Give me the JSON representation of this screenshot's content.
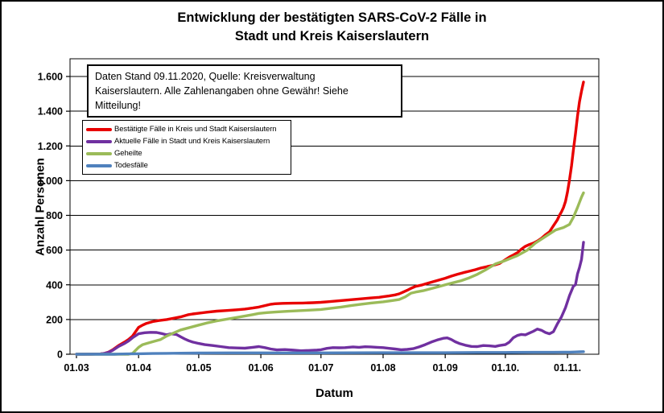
{
  "window": {
    "background": "#ffffff",
    "frame_border_color": "#000000"
  },
  "title": {
    "line1": "Entwicklung der bestätigten SARS-CoV-2 Fälle in",
    "line2": "Stadt und Kreis Kaiserslautern"
  },
  "annotation": {
    "line1": "Daten Stand 09.11.2020, Quelle: Kreisverwaltung",
    "line2": "Kaiserslautern. Alle Zahlenangaben ohne Gewähr! Siehe Mitteilung!"
  },
  "axes": {
    "x_label": "Datum",
    "y_label": "Anzahl Personen"
  },
  "chart_data": {
    "type": "line",
    "title": "Entwicklung der bestätigten SARS-CoV-2 Fälle in Stadt und Kreis Kaiserslautern",
    "xlabel": "Datum",
    "ylabel": "Anzahl Personen",
    "grid": "horizontal",
    "legend_position": "upper-left-inside",
    "ylim": [
      0,
      1700
    ],
    "x_unit": "days since 01.03.2020, data through 09.11.2020",
    "x_range_days": 253,
    "y_ticks": [
      {
        "value": 0,
        "label": "0"
      },
      {
        "value": 200,
        "label": "200"
      },
      {
        "value": 400,
        "label": "400"
      },
      {
        "value": 600,
        "label": "600"
      },
      {
        "value": 800,
        "label": "800"
      },
      {
        "value": 1000,
        "label": "1.000"
      },
      {
        "value": 1200,
        "label": "1.200"
      },
      {
        "value": 1400,
        "label": "1.400"
      },
      {
        "value": 1600,
        "label": "1.600"
      }
    ],
    "x_ticks": [
      {
        "day": 0,
        "label": "01.03"
      },
      {
        "day": 31,
        "label": "01.04"
      },
      {
        "day": 61,
        "label": "01.05"
      },
      {
        "day": 92,
        "label": "01.06"
      },
      {
        "day": 122,
        "label": "01.07"
      },
      {
        "day": 153,
        "label": "01.08"
      },
      {
        "day": 184,
        "label": "01.09"
      },
      {
        "day": 214,
        "label": "01.10."
      },
      {
        "day": 245,
        "label": "01.11."
      }
    ],
    "series": [
      {
        "id": "bestaetigte",
        "label": "Bestätigte Fälle in Kreis und Stadt Kaiserslautern",
        "color": "#e80000",
        "points": [
          [
            0,
            0
          ],
          [
            7,
            0
          ],
          [
            12,
            2
          ],
          [
            14,
            5
          ],
          [
            16,
            12
          ],
          [
            18,
            25
          ],
          [
            21,
            50
          ],
          [
            24,
            70
          ],
          [
            26,
            85
          ],
          [
            28,
            105
          ],
          [
            31,
            155
          ],
          [
            33,
            168
          ],
          [
            35,
            178
          ],
          [
            38,
            188
          ],
          [
            41,
            194
          ],
          [
            45,
            200
          ],
          [
            49,
            208
          ],
          [
            52,
            215
          ],
          [
            56,
            228
          ],
          [
            58,
            232
          ],
          [
            61,
            236
          ],
          [
            65,
            242
          ],
          [
            70,
            248
          ],
          [
            75,
            252
          ],
          [
            80,
            256
          ],
          [
            84,
            260
          ],
          [
            88,
            266
          ],
          [
            91,
            272
          ],
          [
            94,
            280
          ],
          [
            97,
            288
          ],
          [
            99,
            291
          ],
          [
            103,
            293
          ],
          [
            108,
            294
          ],
          [
            113,
            295
          ],
          [
            118,
            297
          ],
          [
            122,
            299
          ],
          [
            126,
            303
          ],
          [
            130,
            307
          ],
          [
            134,
            311
          ],
          [
            138,
            315
          ],
          [
            142,
            319
          ],
          [
            147,
            324
          ],
          [
            151,
            328
          ],
          [
            153,
            331
          ],
          [
            156,
            336
          ],
          [
            159,
            342
          ],
          [
            161,
            348
          ],
          [
            163,
            358
          ],
          [
            165,
            368
          ],
          [
            167,
            380
          ],
          [
            169,
            390
          ],
          [
            172,
            398
          ],
          [
            175,
            408
          ],
          [
            178,
            418
          ],
          [
            181,
            428
          ],
          [
            184,
            438
          ],
          [
            187,
            450
          ],
          [
            190,
            460
          ],
          [
            193,
            470
          ],
          [
            196,
            478
          ],
          [
            199,
            487
          ],
          [
            202,
            497
          ],
          [
            205,
            505
          ],
          [
            208,
            512
          ],
          [
            211,
            522
          ],
          [
            214,
            545
          ],
          [
            216,
            560
          ],
          [
            218,
            572
          ],
          [
            220,
            585
          ],
          [
            222,
            605
          ],
          [
            224,
            622
          ],
          [
            226,
            632
          ],
          [
            228,
            640
          ],
          [
            230,
            652
          ],
          [
            232,
            668
          ],
          [
            234,
            688
          ],
          [
            236,
            705
          ],
          [
            238,
            740
          ],
          [
            240,
            775
          ],
          [
            241,
            800
          ],
          [
            242,
            820
          ],
          [
            243,
            845
          ],
          [
            244,
            880
          ],
          [
            245,
            935
          ],
          [
            246,
            1005
          ],
          [
            247,
            1085
          ],
          [
            248,
            1180
          ],
          [
            249,
            1270
          ],
          [
            250,
            1370
          ],
          [
            251,
            1455
          ],
          [
            252,
            1515
          ],
          [
            253,
            1568
          ]
        ]
      },
      {
        "id": "aktuelle",
        "label": "Aktuelle Fälle in Stadt und Kreis Kaiserslautern",
        "color": "#7030a0",
        "points": [
          [
            0,
            0
          ],
          [
            12,
            2
          ],
          [
            14,
            5
          ],
          [
            16,
            11
          ],
          [
            18,
            22
          ],
          [
            21,
            45
          ],
          [
            24,
            62
          ],
          [
            26,
            76
          ],
          [
            28,
            95
          ],
          [
            31,
            118
          ],
          [
            34,
            124
          ],
          [
            37,
            126
          ],
          [
            40,
            125
          ],
          [
            43,
            118
          ],
          [
            45,
            112
          ],
          [
            47,
            118
          ],
          [
            50,
            113
          ],
          [
            52,
            100
          ],
          [
            54,
            88
          ],
          [
            56,
            78
          ],
          [
            58,
            70
          ],
          [
            61,
            62
          ],
          [
            64,
            55
          ],
          [
            68,
            50
          ],
          [
            72,
            44
          ],
          [
            76,
            38
          ],
          [
            80,
            36
          ],
          [
            84,
            35
          ],
          [
            88,
            40
          ],
          [
            91,
            44
          ],
          [
            94,
            38
          ],
          [
            97,
            30
          ],
          [
            100,
            25
          ],
          [
            104,
            27
          ],
          [
            108,
            24
          ],
          [
            112,
            20
          ],
          [
            116,
            22
          ],
          [
            120,
            24
          ],
          [
            122,
            26
          ],
          [
            125,
            34
          ],
          [
            128,
            38
          ],
          [
            131,
            37
          ],
          [
            134,
            38
          ],
          [
            138,
            42
          ],
          [
            141,
            40
          ],
          [
            144,
            43
          ],
          [
            147,
            42
          ],
          [
            150,
            40
          ],
          [
            153,
            38
          ],
          [
            156,
            34
          ],
          [
            159,
            30
          ],
          [
            162,
            26
          ],
          [
            165,
            28
          ],
          [
            168,
            32
          ],
          [
            171,
            42
          ],
          [
            174,
            55
          ],
          [
            177,
            70
          ],
          [
            180,
            82
          ],
          [
            183,
            92
          ],
          [
            185,
            94
          ],
          [
            187,
            85
          ],
          [
            189,
            72
          ],
          [
            191,
            62
          ],
          [
            194,
            52
          ],
          [
            197,
            45
          ],
          [
            200,
            44
          ],
          [
            203,
            50
          ],
          [
            206,
            48
          ],
          [
            209,
            45
          ],
          [
            211,
            50
          ],
          [
            214,
            55
          ],
          [
            216,
            70
          ],
          [
            218,
            95
          ],
          [
            220,
            108
          ],
          [
            222,
            114
          ],
          [
            224,
            112
          ],
          [
            226,
            122
          ],
          [
            228,
            132
          ],
          [
            230,
            145
          ],
          [
            232,
            138
          ],
          [
            234,
            125
          ],
          [
            236,
            118
          ],
          [
            238,
            130
          ],
          [
            240,
            176
          ],
          [
            242,
            215
          ],
          [
            244,
            268
          ],
          [
            246,
            338
          ],
          [
            248,
            393
          ],
          [
            249,
            400
          ],
          [
            250,
            462
          ],
          [
            251,
            500
          ],
          [
            252,
            546
          ],
          [
            253,
            645
          ]
        ]
      },
      {
        "id": "geheilte",
        "label": "Geheilte",
        "color": "#9bbb59",
        "points": [
          [
            0,
            0
          ],
          [
            26,
            0
          ],
          [
            28,
            5
          ],
          [
            31,
            40
          ],
          [
            33,
            55
          ],
          [
            35,
            62
          ],
          [
            38,
            72
          ],
          [
            42,
            85
          ],
          [
            45,
            105
          ],
          [
            49,
            125
          ],
          [
            52,
            140
          ],
          [
            56,
            152
          ],
          [
            61,
            168
          ],
          [
            65,
            180
          ],
          [
            70,
            192
          ],
          [
            75,
            202
          ],
          [
            80,
            212
          ],
          [
            84,
            220
          ],
          [
            88,
            228
          ],
          [
            91,
            235
          ],
          [
            95,
            240
          ],
          [
            100,
            244
          ],
          [
            105,
            247
          ],
          [
            110,
            250
          ],
          [
            115,
            253
          ],
          [
            122,
            258
          ],
          [
            127,
            265
          ],
          [
            132,
            272
          ],
          [
            137,
            280
          ],
          [
            142,
            288
          ],
          [
            147,
            295
          ],
          [
            153,
            302
          ],
          [
            157,
            308
          ],
          [
            161,
            315
          ],
          [
            164,
            330
          ],
          [
            167,
            352
          ],
          [
            170,
            360
          ],
          [
            173,
            366
          ],
          [
            177,
            378
          ],
          [
            181,
            390
          ],
          [
            184,
            400
          ],
          [
            188,
            412
          ],
          [
            192,
            424
          ],
          [
            196,
            440
          ],
          [
            200,
            460
          ],
          [
            204,
            485
          ],
          [
            209,
            520
          ],
          [
            214,
            540
          ],
          [
            220,
            568
          ],
          [
            225,
            600
          ],
          [
            229,
            640
          ],
          [
            234,
            678
          ],
          [
            239,
            715
          ],
          [
            243,
            730
          ],
          [
            246,
            748
          ],
          [
            248,
            790
          ],
          [
            250,
            845
          ],
          [
            251,
            875
          ],
          [
            252,
            905
          ],
          [
            253,
            930
          ]
        ]
      },
      {
        "id": "todesfaelle",
        "label": "Todesfälle",
        "color": "#4f81bd",
        "points": [
          [
            0,
            0
          ],
          [
            19,
            0
          ],
          [
            21,
            1
          ],
          [
            25,
            2
          ],
          [
            31,
            3
          ],
          [
            38,
            4
          ],
          [
            45,
            5
          ],
          [
            52,
            6
          ],
          [
            61,
            7
          ],
          [
            76,
            8
          ],
          [
            92,
            8
          ],
          [
            122,
            8
          ],
          [
            153,
            9
          ],
          [
            184,
            9
          ],
          [
            200,
            10
          ],
          [
            214,
            10
          ],
          [
            228,
            11
          ],
          [
            238,
            11
          ],
          [
            243,
            12
          ],
          [
            246,
            12
          ],
          [
            249,
            13
          ],
          [
            251,
            14
          ],
          [
            253,
            15
          ]
        ]
      }
    ]
  }
}
